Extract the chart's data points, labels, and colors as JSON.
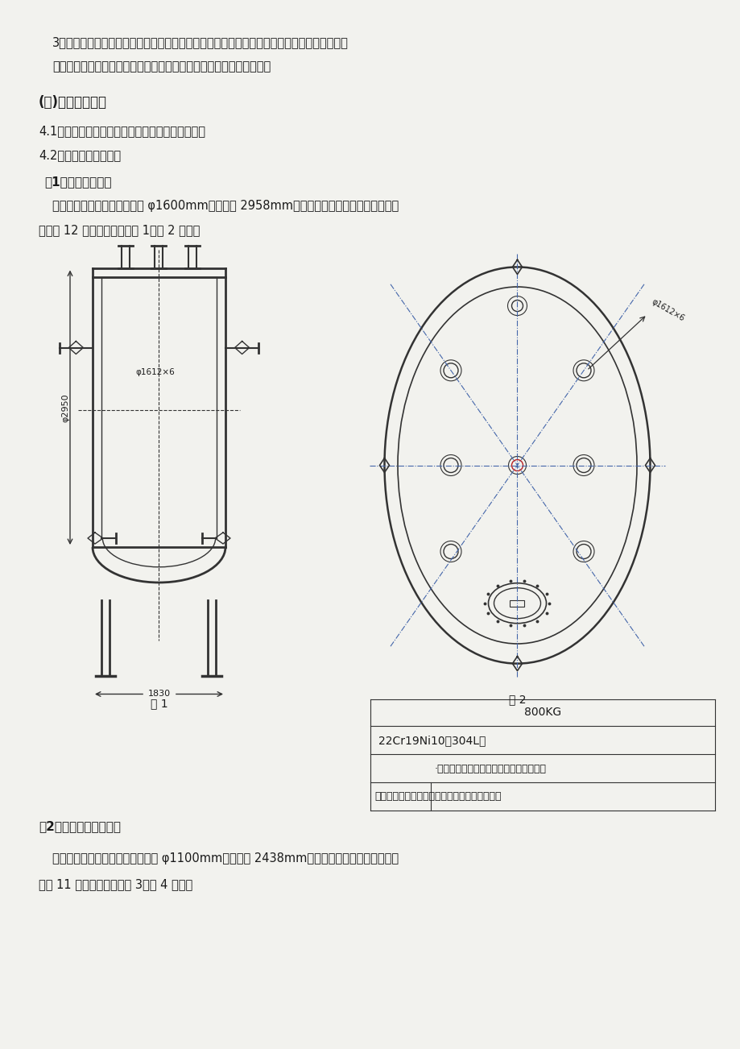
{
  "bg_color": "#f2f2ee",
  "text_color": "#1a1a1a",
  "line_color": "#333333",
  "para1_line1": "3、产品达到的规定：对压缩减容系统运营过程中产生废液、应急淋浴间排水以及设备、地面去",
  "para1_line2": "污废水等废液的安全暂存，并能将废液输送至废液解决中心进行解决。",
  "section_title": "(四)设备技术规定",
  "item41": "4.1、重要根据：《废液储存及排放系统工艺图》。",
  "item42": "4.2、重要设备技术规定",
  "item1_title": "（1）废水收集槽：",
  "item1_body1": "废水收集槽为立式贮罐，内径 φ1600mm，总高度 2958mm，设立进出口、排气孔、仪表口、",
  "item1_body2": "人孔等 12 个开口，构造如图 1、图 2 所示。",
  "fig1_label": "图 1",
  "fig2_label": "图 2",
  "dim_label1": "φ1612×6",
  "dim_label2": "φ1612×6",
  "height_label": "φ2950",
  "width_label": "1830",
  "table_row1": "800KG",
  "table_row2": "22Cr19Ni10（304L）",
  "table_row3_col2": "·后涂覆盖防腐蚀环氧树脂涂层，避免物料",
  "table_row4_col2": "对罐体的腐蚀，外表面刷防锈漆避免大气腐蚀。",
  "item2_title": "（2）压缩废液收集槽：",
  "item2_body1": "压缩废液收集槽为立式贮罐，内径 φ1100mm，总高度 2438mm，设立进出口、排气孔、仪表",
  "item2_body2": "口等 11 个开口，构造如图 3、图 4 所示。"
}
